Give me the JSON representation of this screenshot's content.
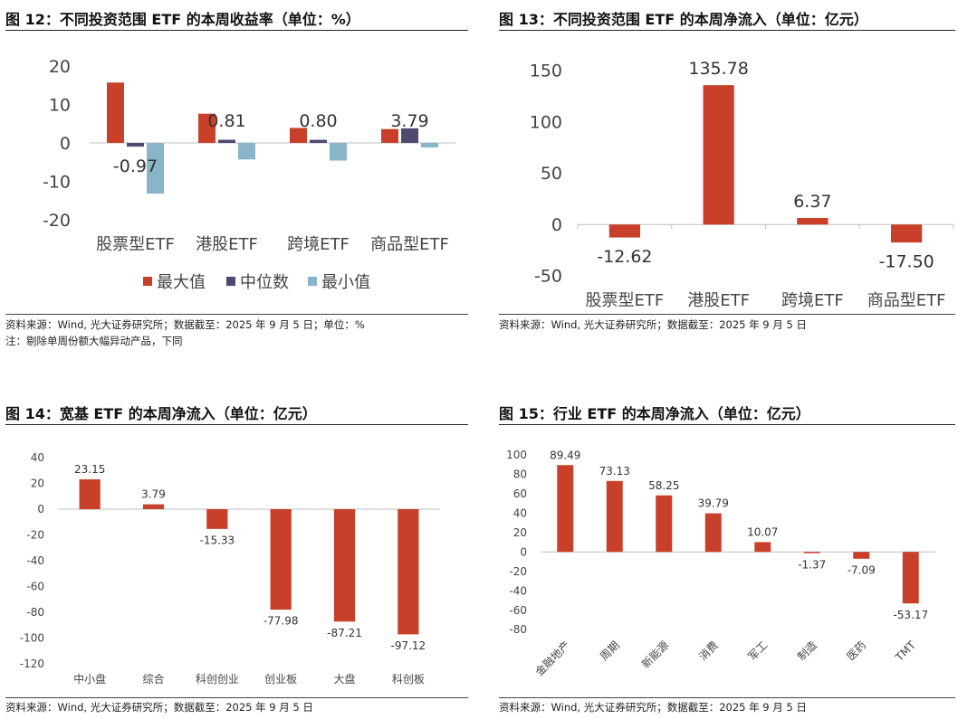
{
  "colors": {
    "max": "#c8402a",
    "median": "#4d4a70",
    "min": "#8ab4c8",
    "bar": "#c8402a",
    "axis": "#bfbfbf",
    "label": "#444444"
  },
  "chart_data": [
    {
      "type": "bar",
      "title": "图 12：不同投资范围 ETF 的本周收益率（单位：%）",
      "categories": [
        "股票型ETF",
        "港股ETF",
        "跨境ETF",
        "商品型ETF"
      ],
      "series": [
        {
          "name": "最大值",
          "values": [
            15.7,
            7.6,
            3.9,
            3.6
          ]
        },
        {
          "name": "中位数",
          "values": [
            -0.97,
            0.81,
            0.8,
            3.79
          ]
        },
        {
          "name": "最小值",
          "values": [
            -13.2,
            -4.3,
            -4.6,
            -1.2
          ]
        }
      ],
      "data_labels": {
        "series": "中位数",
        "labels": [
          "-0.97",
          "0.81",
          "0.80",
          "3.79"
        ]
      },
      "yticks": [
        "20",
        "10",
        "0",
        "-10",
        "-20"
      ],
      "ylim": [
        -20,
        20
      ],
      "legend": "bottom",
      "source": "资料来源：Wind, 光大证券研究所；数据截至：2025 年 9 月 5 日；单位：%",
      "footnote": "注：剔除单周份额大幅异动产品，下同"
    },
    {
      "type": "bar",
      "title": "图 13：不同投资范围 ETF 的本周净流入（单位：亿元）",
      "categories": [
        "股票型ETF",
        "港股ETF",
        "跨境ETF",
        "商品型ETF"
      ],
      "values": [
        -12.62,
        135.78,
        6.37,
        -17.5
      ],
      "labels": [
        "-12.62",
        "135.78",
        "6.37",
        "-17.50"
      ],
      "yticks": [
        "150",
        "100",
        "50",
        "0",
        "-50"
      ],
      "ylim": [
        -50,
        150
      ],
      "source": "资料来源：Wind, 光大证券研究所；数据截至：2025 年 9 月 5 日"
    },
    {
      "type": "bar",
      "title": "图 14：宽基 ETF 的本周净流入（单位：亿元）",
      "categories": [
        "中小盘",
        "综合",
        "科创创业",
        "创业板",
        "大盘",
        "科创板"
      ],
      "values": [
        23.15,
        3.79,
        -15.33,
        -77.98,
        -87.21,
        -97.12
      ],
      "labels": [
        "23.15",
        "3.79",
        "-15.33",
        "-77.98",
        "-87.21",
        "-97.12"
      ],
      "yticks": [
        "40",
        "20",
        "0",
        "-20",
        "-40",
        "-60",
        "-80",
        "-100",
        "-120"
      ],
      "ylim": [
        -120,
        40
      ],
      "source": "资料来源：Wind, 光大证券研究所；数据截至：2025 年 9 月 5 日"
    },
    {
      "type": "bar",
      "title": "图 15：行业 ETF 的本周净流入（单位：亿元）",
      "categories": [
        "金融地产",
        "周期",
        "新能源",
        "消费",
        "军工",
        "制造",
        "医药",
        "TMT"
      ],
      "values": [
        89.49,
        73.13,
        58.25,
        39.79,
        10.07,
        -1.37,
        -7.09,
        -53.17
      ],
      "labels": [
        "89.49",
        "73.13",
        "58.25",
        "39.79",
        "10.07",
        "-1.37",
        "-7.09",
        "-53.17"
      ],
      "yticks": [
        "100",
        "80",
        "60",
        "40",
        "20",
        "0",
        "-20",
        "-40",
        "-60",
        "-80"
      ],
      "ylim": [
        -80,
        100
      ],
      "source": "资料来源：Wind, 光大证券研究所；数据截至：2025 年 9 月 5 日"
    }
  ]
}
